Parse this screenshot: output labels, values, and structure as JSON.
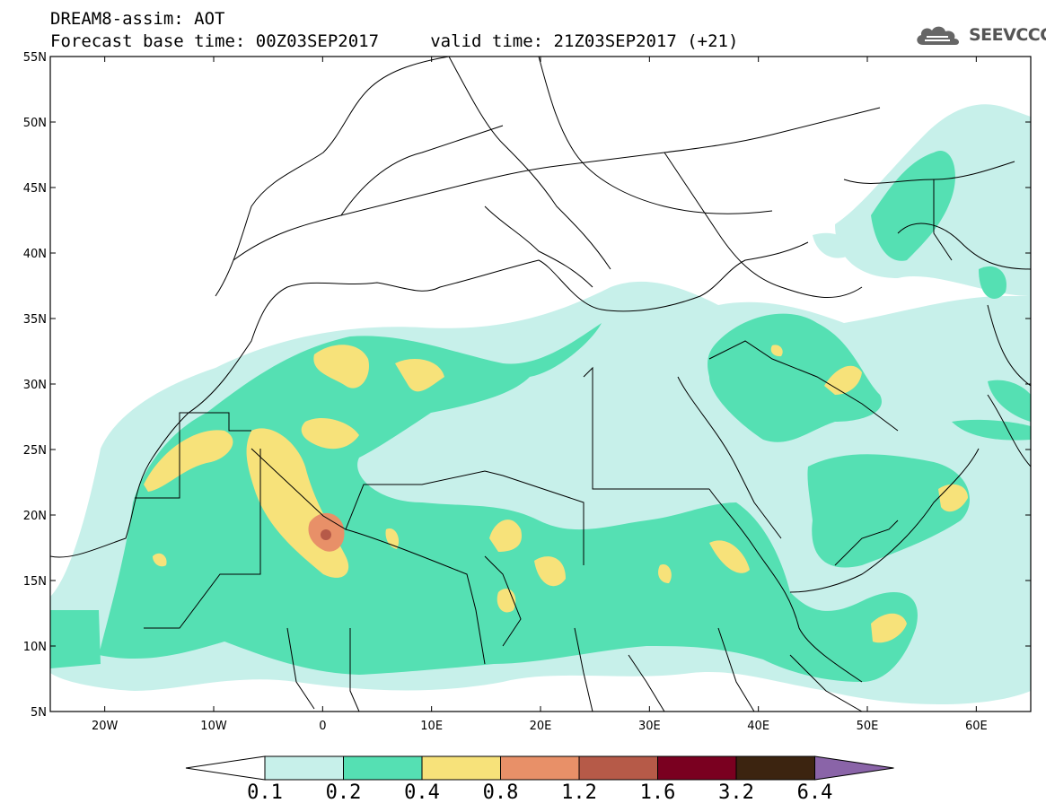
{
  "header": {
    "title_line1": "DREAM8-assim: AOT",
    "title_line2": "Forecast base time: 00Z03SEP2017     valid time: 21Z03SEP2017 (+21)",
    "logo_text": "SEEVCCC"
  },
  "map": {
    "variable": "AOT",
    "lon_range": [
      -25,
      65
    ],
    "lat_range": [
      5,
      55
    ],
    "lat_ticks": [
      "55N",
      "50N",
      "45N",
      "40N",
      "35N",
      "30N",
      "25N",
      "20N",
      "15N",
      "10N",
      "5N"
    ],
    "lon_ticks": [
      "20W",
      "10W",
      "0",
      "10E",
      "20E",
      "30E",
      "40E",
      "50E",
      "60E"
    ],
    "ocean_color": "#ffffff",
    "border_color": "#000000"
  },
  "colorbar": {
    "levels": [
      "0.1",
      "0.2",
      "0.4",
      "0.8",
      "1.2",
      "1.6",
      "3.2",
      "6.4"
    ],
    "colors": [
      "#ffffff",
      "#c7f0ea",
      "#55e0b3",
      "#f7e27a",
      "#e89068",
      "#b65a48",
      "#7a0020",
      "#3c2410",
      "#8a64a8"
    ],
    "extend": "both"
  }
}
